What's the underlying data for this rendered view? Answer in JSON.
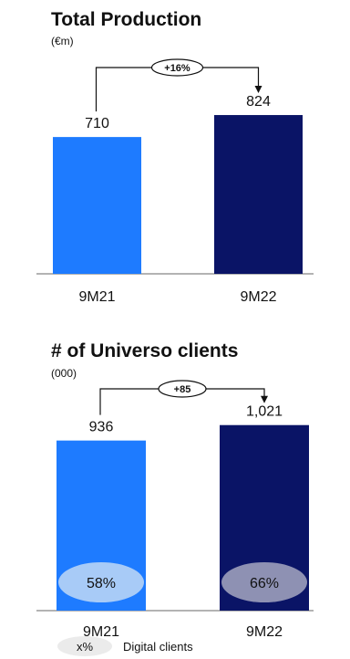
{
  "colors": {
    "bar_light": "#1E7BFF",
    "bar_dark": "#0A1466",
    "axis": "#9A9A9A",
    "connector": "#111111",
    "badge_fill": "#FFFFFF",
    "badge_stroke": "#111111",
    "digital_fill_light": "#A8CBF7",
    "digital_fill_dark": "#8E91B3",
    "legend_fill": "#EBEBEB"
  },
  "chart_data": [
    {
      "type": "bar",
      "title": "Total Production",
      "subtitle": "(€m)",
      "categories": [
        "9M21",
        "9M22"
      ],
      "values": [
        710,
        824
      ],
      "value_labels": [
        "710",
        "824"
      ],
      "delta_label": "+16%",
      "ylim": [
        0,
        900
      ],
      "grid": false,
      "legend": "none"
    },
    {
      "type": "bar",
      "title": "# of Universo clients",
      "subtitle": "(000)",
      "categories": [
        "9M21",
        "9M22"
      ],
      "values": [
        936,
        1021
      ],
      "value_labels": [
        "936",
        "1,021"
      ],
      "delta_label": "+85",
      "digital_share_labels": [
        "58%",
        "66%"
      ],
      "digital_share_values": [
        58,
        66
      ],
      "ylim": [
        0,
        1110
      ],
      "grid": false,
      "legend": "bottom-left"
    }
  ],
  "legend": {
    "swatch_label": "x%",
    "text": "Digital clients"
  }
}
